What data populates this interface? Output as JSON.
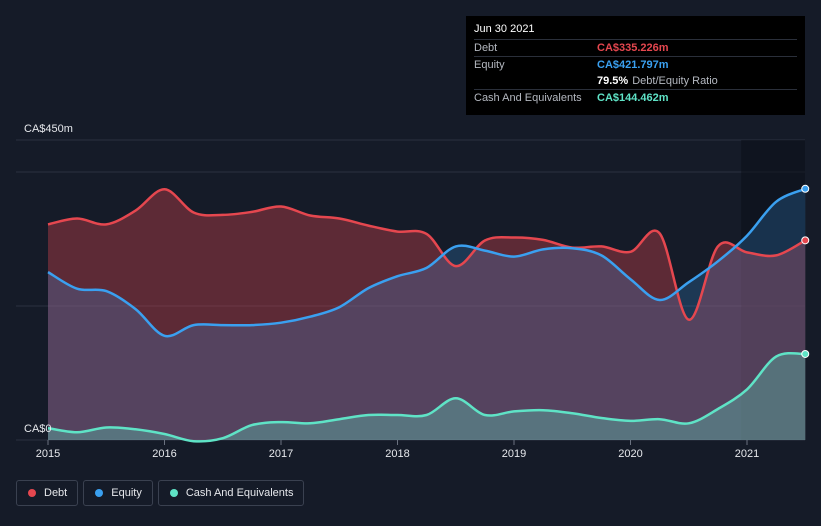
{
  "chart_data": {
    "type": "area",
    "title": "",
    "xlabel": "",
    "ylabel": "",
    "ylim": [
      0,
      450
    ],
    "y_tick_labels": [
      "CA$0",
      "CA$450m"
    ],
    "x_ticks": [
      2015,
      2016,
      2017,
      2018,
      2019,
      2020,
      2021
    ],
    "x_tick_labels": [
      "2015",
      "2016",
      "2017",
      "2018",
      "2019",
      "2020",
      "2021"
    ],
    "xlim": [
      2015.0,
      2021.5
    ],
    "series": [
      {
        "name": "Debt",
        "color": "#e5474f",
        "x": [
          2015.0,
          2015.25,
          2015.5,
          2015.75,
          2016.0,
          2016.25,
          2016.5,
          2016.75,
          2017.0,
          2017.25,
          2017.5,
          2017.75,
          2018.0,
          2018.25,
          2018.5,
          2018.75,
          2019.0,
          2019.25,
          2019.5,
          2019.75,
          2020.0,
          2020.25,
          2020.5,
          2020.75,
          2021.0,
          2021.25,
          2021.5
        ],
        "values": [
          362,
          372,
          362,
          385,
          421,
          382,
          378,
          383,
          392,
          377,
          372,
          360,
          350,
          346,
          292,
          335,
          340,
          336,
          323,
          325,
          316,
          347,
          202,
          325,
          315,
          310,
          335.226
        ]
      },
      {
        "name": "Equity",
        "color": "#3aa0f0",
        "x": [
          2015.0,
          2015.25,
          2015.5,
          2015.75,
          2016.0,
          2016.25,
          2016.5,
          2016.75,
          2017.0,
          2017.25,
          2017.5,
          2017.75,
          2018.0,
          2018.25,
          2018.5,
          2018.75,
          2019.0,
          2019.25,
          2019.5,
          2019.75,
          2020.0,
          2020.25,
          2020.5,
          2020.75,
          2021.0,
          2021.25,
          2021.5
        ],
        "values": [
          282,
          254,
          250,
          220,
          175,
          193,
          193,
          193,
          197,
          207,
          223,
          255,
          275,
          289,
          325,
          318,
          308,
          320,
          322,
          310,
          270,
          235,
          265,
          300,
          343,
          400,
          421.797
        ]
      },
      {
        "name": "Cash And Equivalents",
        "color": "#5fe3c6",
        "x": [
          2015.0,
          2015.25,
          2015.5,
          2015.75,
          2016.0,
          2016.25,
          2016.5,
          2016.75,
          2017.0,
          2017.25,
          2017.5,
          2017.75,
          2018.0,
          2018.25,
          2018.5,
          2018.75,
          2019.0,
          2019.25,
          2019.5,
          2019.75,
          2020.0,
          2020.25,
          2020.5,
          2020.75,
          2021.0,
          2021.25,
          2021.5
        ],
        "values": [
          20,
          13,
          21,
          18,
          10,
          -2,
          3,
          25,
          30,
          28,
          35,
          42,
          42,
          42,
          70,
          42,
          48,
          50,
          45,
          37,
          32,
          35,
          28,
          52,
          85,
          140,
          144.462
        ]
      }
    ],
    "tooltip": {
      "date": "Jun 30 2021",
      "debt_label": "Debt",
      "debt_value": "CA$335.226m",
      "equity_label": "Equity",
      "equity_value": "CA$421.797m",
      "ratio_value": "79.5%",
      "ratio_label": "Debt/Equity Ratio",
      "cash_label": "Cash And Equivalents",
      "cash_value": "CA$144.462m"
    },
    "legend": [
      {
        "label": "Debt",
        "color": "#e5474f"
      },
      {
        "label": "Equity",
        "color": "#3aa0f0"
      },
      {
        "label": "Cash And Equivalents",
        "color": "#5fe3c6"
      }
    ]
  }
}
